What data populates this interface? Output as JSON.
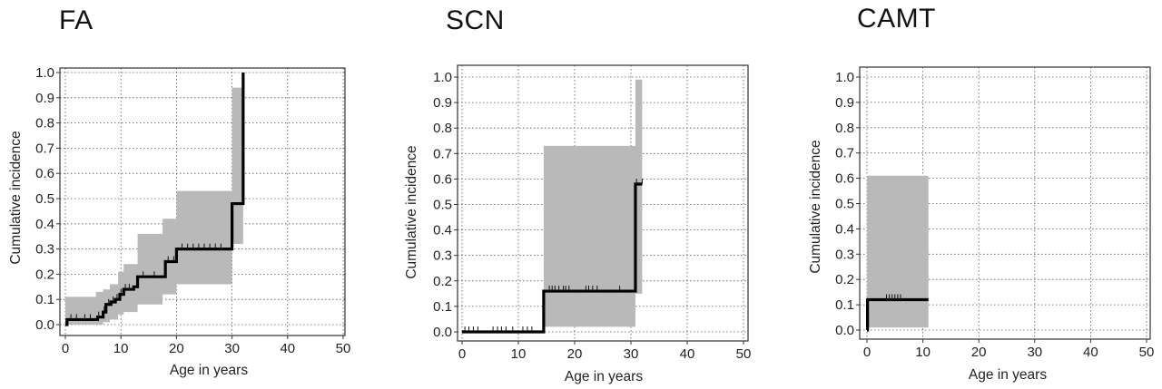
{
  "chart_data": [
    {
      "type": "line",
      "title": "FA",
      "xlabel": "Age in years",
      "ylabel": "Cumulative incidence",
      "xlim": [
        0,
        50
      ],
      "ylim": [
        0,
        1.0
      ],
      "xticks": [
        0,
        10,
        20,
        30,
        40,
        50
      ],
      "yticks": [
        0.0,
        0.1,
        0.2,
        0.3,
        0.4,
        0.5,
        0.6,
        0.7,
        0.8,
        0.9,
        1.0
      ],
      "grid": true,
      "step": {
        "x": [
          0,
          0.3,
          5,
          5.8,
          6.8,
          7.3,
          8.2,
          9.0,
          9.8,
          10.5,
          12.3,
          13.0,
          17.5,
          18.0,
          20.0,
          29.8,
          30.0,
          32.0
        ],
        "y": [
          0.0,
          0.02,
          0.02,
          0.03,
          0.05,
          0.08,
          0.09,
          0.1,
          0.12,
          0.14,
          0.15,
          0.19,
          0.19,
          0.25,
          0.3,
          0.3,
          0.48,
          0.65
        ]
      },
      "end": [
        32.0,
        1.0
      ],
      "band": {
        "x": [
          0,
          5.5,
          6.8,
          8.0,
          9.5,
          10.5,
          13.0,
          17.5,
          20.0,
          29.8,
          30.0,
          32.0
        ],
        "lower": [
          0.0,
          0.0,
          0.01,
          0.02,
          0.04,
          0.05,
          0.08,
          0.12,
          0.16,
          0.16,
          0.32,
          0.32
        ],
        "upper": [
          0.11,
          0.13,
          0.14,
          0.16,
          0.21,
          0.24,
          0.36,
          0.42,
          0.53,
          0.53,
          0.94,
          0.94
        ]
      },
      "censor_x": [
        1,
        2,
        3.5,
        4.5,
        6.0,
        7.0,
        7.8,
        8.6,
        9.3,
        10.0,
        10.8,
        11.5,
        14.0,
        16.0,
        18.5,
        19.5,
        21.0,
        22.0,
        23.0,
        24.0,
        25.0,
        26.0,
        27.0,
        28.0
      ]
    },
    {
      "type": "line",
      "title": "SCN",
      "xlabel": "Age in years",
      "ylabel": "Cumulative incidence",
      "xlim": [
        0,
        50
      ],
      "ylim": [
        0,
        1.0
      ],
      "xticks": [
        0,
        10,
        20,
        30,
        40,
        50
      ],
      "yticks": [
        0.0,
        0.1,
        0.2,
        0.3,
        0.4,
        0.5,
        0.6,
        0.7,
        0.8,
        0.9,
        1.0
      ],
      "grid": true,
      "step": {
        "x": [
          0,
          14.5,
          30.8,
          32.0
        ],
        "y": [
          0.0,
          0.16,
          0.58,
          0.58
        ]
      },
      "band": {
        "x": [
          0,
          14.5,
          30.8,
          32.0
        ],
        "lower": [
          0.0,
          0.02,
          0.15,
          0.15
        ],
        "upper": [
          0.0,
          0.73,
          0.99,
          0.99
        ]
      },
      "censor_x": [
        0.5,
        1.2,
        2.0,
        2.8,
        5.5,
        6.3,
        7.0,
        7.8,
        9.0,
        10.8,
        11.6,
        12.4,
        15.5,
        16.0,
        16.5,
        17.2,
        18.0,
        18.4,
        19.0,
        22.0,
        22.5,
        23.2,
        24.0,
        28.0,
        31.0,
        32.0
      ]
    },
    {
      "type": "line",
      "title": "CAMT",
      "xlabel": "Age in years",
      "ylabel": "Cumulative incidence",
      "xlim": [
        0,
        50
      ],
      "ylim": [
        0,
        1.0
      ],
      "xticks": [
        0,
        10,
        20,
        30,
        40,
        50
      ],
      "yticks": [
        0.0,
        0.1,
        0.2,
        0.3,
        0.4,
        0.5,
        0.6,
        0.7,
        0.8,
        0.9,
        1.0
      ],
      "grid": true,
      "step": {
        "x": [
          0,
          0.1,
          11.0
        ],
        "y": [
          0.0,
          0.12,
          0.12
        ]
      },
      "band": {
        "x": [
          0,
          11.0
        ],
        "lower": [
          0.01,
          0.01
        ],
        "upper": [
          0.61,
          0.61
        ]
      },
      "censor_x": [
        3.5,
        4.0,
        4.5,
        5.0,
        5.5,
        6.0
      ]
    }
  ]
}
